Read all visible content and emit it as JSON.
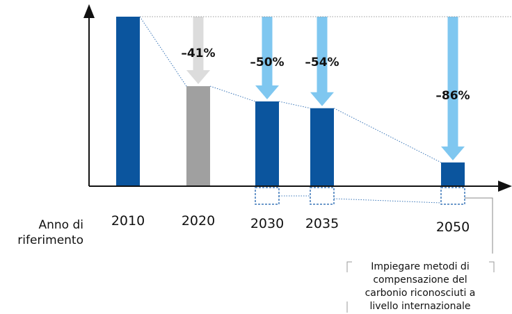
{
  "chart_data": {
    "type": "bar",
    "xlabel": "Anno di riferimento",
    "categories": [
      "2010",
      "2020",
      "2030",
      "2035",
      "2050"
    ],
    "values": [
      100,
      59,
      50,
      46,
      14
    ],
    "reductions": [
      "",
      "–41%",
      "–50%",
      "–54%",
      "–86%"
    ],
    "bar_colors": [
      "#0b559e",
      "#a0a0a0",
      "#0b559e",
      "#0b559e",
      "#0b559e"
    ],
    "arrow_colors": [
      "",
      "#dcdcdc",
      "#7fc7f0",
      "#7fc7f0",
      "#7fc7f0"
    ],
    "ylim": [
      0,
      100
    ],
    "grid": false,
    "offset_note": "Impiegare metodi di compensazione del carbonio riconosciuti a livello internazionale"
  }
}
